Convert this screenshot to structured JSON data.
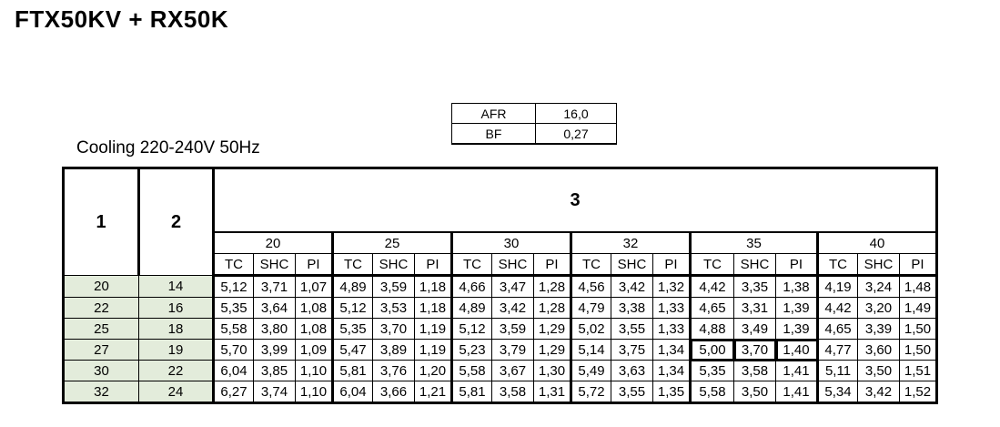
{
  "title": "FTX50KV + RX50K",
  "afr_table": [
    {
      "key": "AFR",
      "value": "16,0"
    },
    {
      "key": "BF",
      "value": "0,27"
    }
  ],
  "subtitle": "Cooling 220-240V  50Hz",
  "table": {
    "col1_header": "1",
    "col2_header": "2",
    "group_header": "3",
    "groups": [
      "20",
      "25",
      "30",
      "32",
      "35",
      "40"
    ],
    "sub_headers": [
      "TC",
      "SHC",
      "PI"
    ],
    "rows": [
      {
        "c1": "20",
        "c2": "14",
        "cells": [
          "5,12",
          "3,71",
          "1,07",
          "4,89",
          "3,59",
          "1,18",
          "4,66",
          "3,47",
          "1,28",
          "4,56",
          "3,42",
          "1,32",
          "4,42",
          "3,35",
          "1,38",
          "4,19",
          "3,24",
          "1,48"
        ]
      },
      {
        "c1": "22",
        "c2": "16",
        "cells": [
          "5,35",
          "3,64",
          "1,08",
          "5,12",
          "3,53",
          "1,18",
          "4,89",
          "3,42",
          "1,28",
          "4,79",
          "3,38",
          "1,33",
          "4,65",
          "3,31",
          "1,39",
          "4,42",
          "3,20",
          "1,49"
        ]
      },
      {
        "c1": "25",
        "c2": "18",
        "cells": [
          "5,58",
          "3,80",
          "1,08",
          "5,35",
          "3,70",
          "1,19",
          "5,12",
          "3,59",
          "1,29",
          "5,02",
          "3,55",
          "1,33",
          "4,88",
          "3,49",
          "1,39",
          "4,65",
          "3,39",
          "1,50"
        ]
      },
      {
        "c1": "27",
        "c2": "19",
        "cells": [
          "5,70",
          "3,99",
          "1,09",
          "5,47",
          "3,89",
          "1,19",
          "5,23",
          "3,79",
          "1,29",
          "5,14",
          "3,75",
          "1,34",
          "5,00",
          "3,70",
          "1,40",
          "4,77",
          "3,60",
          "1,50"
        ]
      },
      {
        "c1": "30",
        "c2": "22",
        "cells": [
          "6,04",
          "3,85",
          "1,10",
          "5,81",
          "3,76",
          "1,20",
          "5,58",
          "3,67",
          "1,30",
          "5,49",
          "3,63",
          "1,34",
          "5,35",
          "3,58",
          "1,41",
          "5,11",
          "3,50",
          "1,51"
        ]
      },
      {
        "c1": "32",
        "c2": "24",
        "cells": [
          "6,27",
          "3,74",
          "1,10",
          "6,04",
          "3,66",
          "1,21",
          "5,81",
          "3,58",
          "1,31",
          "5,72",
          "3,55",
          "1,35",
          "5,58",
          "3,50",
          "1,41",
          "5,34",
          "3,42",
          "1,52"
        ]
      }
    ],
    "highlight": {
      "row": 3,
      "group": 4
    }
  },
  "colors": {
    "row_header_bg": "#e3ecdb",
    "border": "#000000"
  }
}
